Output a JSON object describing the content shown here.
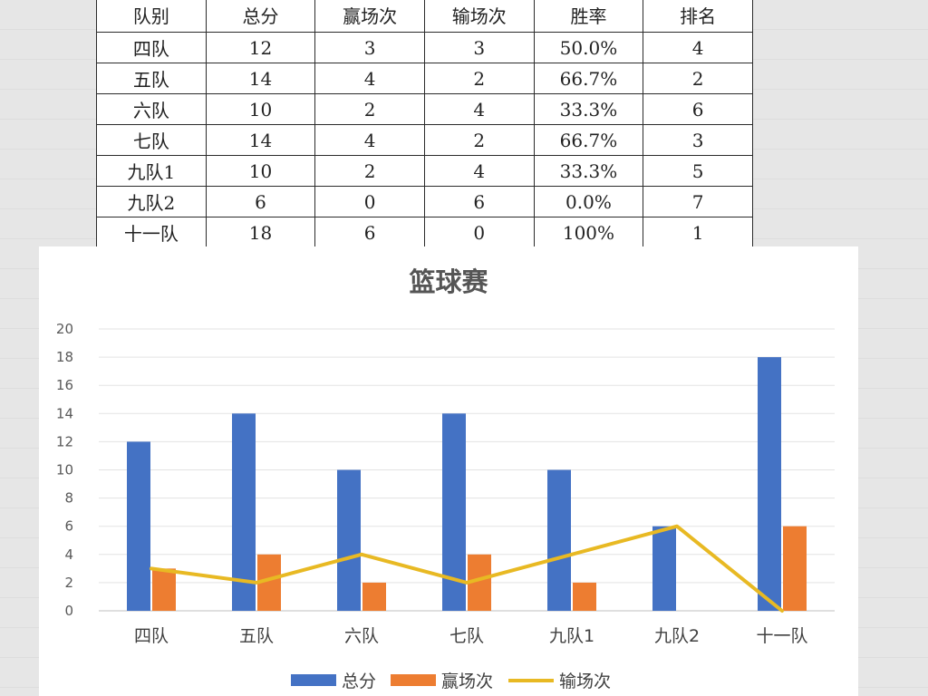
{
  "table": {
    "headers": [
      "队别",
      "总分",
      "赢场次",
      "输场次",
      "胜率",
      "排名"
    ],
    "rows": [
      [
        "四队",
        "12",
        "3",
        "3",
        "50.0%",
        "4"
      ],
      [
        "五队",
        "14",
        "4",
        "2",
        "66.7%",
        "2"
      ],
      [
        "六队",
        "10",
        "2",
        "4",
        "33.3%",
        "6"
      ],
      [
        "七队",
        "14",
        "4",
        "2",
        "66.7%",
        "3"
      ],
      [
        "九队1",
        "10",
        "2",
        "4",
        "33.3%",
        "5"
      ],
      [
        "九队2",
        "6",
        "0",
        "6",
        "0.0%",
        "7"
      ],
      [
        "十一队",
        "18",
        "6",
        "0",
        "100%",
        "1"
      ]
    ]
  },
  "chart_data": {
    "type": "bar",
    "title": "篮球赛",
    "categories": [
      "四队",
      "五队",
      "六队",
      "七队",
      "九队1",
      "九队2",
      "十一队"
    ],
    "ylim": [
      0,
      20
    ],
    "yticks": [
      0,
      2,
      4,
      6,
      8,
      10,
      12,
      14,
      16,
      18,
      20
    ],
    "grid": true,
    "legend_position": "bottom",
    "series": [
      {
        "name": "总分",
        "kind": "bar",
        "color": "#4472C4",
        "values": [
          12,
          14,
          10,
          14,
          10,
          6,
          18
        ]
      },
      {
        "name": "赢场次",
        "kind": "bar",
        "color": "#ED7D31",
        "values": [
          3,
          4,
          2,
          4,
          2,
          0,
          6
        ]
      },
      {
        "name": "输场次",
        "kind": "line",
        "color": "#E8B923",
        "values": [
          3,
          2,
          4,
          2,
          4,
          6,
          0
        ]
      }
    ]
  }
}
